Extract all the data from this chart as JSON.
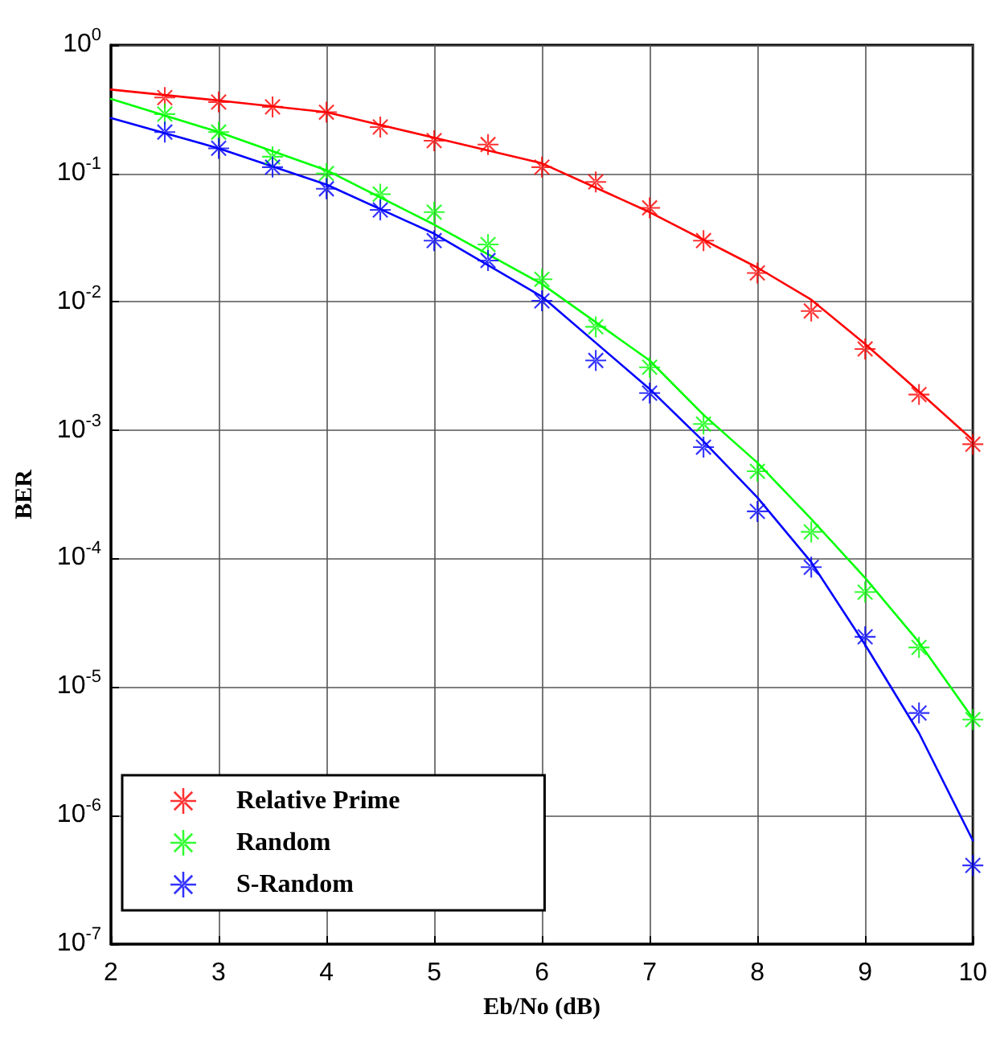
{
  "chart_data": {
    "type": "scatter",
    "xlabel": "Eb/No (dB)",
    "ylabel": "BER",
    "log": "y",
    "xlim": [
      2,
      10
    ],
    "xticks": [
      2,
      3,
      4,
      5,
      6,
      7,
      8,
      9,
      10
    ],
    "ylim": [
      1e-07,
      1
    ],
    "yticks": [
      {
        "value": 1e-07,
        "label": "10$^{-7}$"
      },
      {
        "value": 1e-06,
        "label": "10$^{-6}$"
      },
      {
        "value": 1e-05,
        "label": "10$^{-5}$"
      },
      {
        "value": 0.0001,
        "label": "10$^{-4}$"
      },
      {
        "value": 0.001,
        "label": "10$^{-3}$"
      },
      {
        "value": 0.01,
        "label": "10$^{-2}$"
      },
      {
        "value": 0.1,
        "label": "10$^{-1}$"
      },
      {
        "value": 1,
        "label": "10$^{0}$"
      }
    ],
    "grid": true,
    "legend": "bottom left",
    "marker": "star",
    "x": [
      2.5,
      3,
      3.5,
      4,
      4.5,
      5,
      5.5,
      6,
      6.5,
      7,
      7.5,
      8,
      8.5,
      9,
      9.5,
      10
    ],
    "series": [
      {
        "name": "Relative Prime",
        "color": "#ff0000",
        "values": [
          0.39,
          0.36,
          0.33,
          0.3,
          0.23,
          0.18,
          0.168,
          0.112,
          0.086,
          0.054,
          0.03,
          0.0168,
          0.0085,
          0.0043,
          0.0019,
          0.00078
        ]
      },
      {
        "name": "Random",
        "color": "#00ff00",
        "values": [
          0.29,
          0.21,
          0.135,
          0.1,
          0.069,
          0.05,
          0.028,
          0.015,
          0.0064,
          0.0031,
          0.00112,
          0.00048,
          0.000162,
          5.5e-05,
          2.04e-05,
          5.6e-06
        ]
      },
      {
        "name": "S-Random",
        "color": "#0000ff",
        "values": [
          0.21,
          0.157,
          0.112,
          0.076,
          0.052,
          0.03,
          0.021,
          0.0102,
          0.0035,
          0.00195,
          0.00074,
          0.000234,
          8.6e-05,
          2.47e-05,
          6.3e-06,
          4.1e-07
        ]
      },
      {
        "type": "line",
        "color": "#ff0000",
        "marker": "none",
        "line_style": "solid",
        "x": [
          2,
          3,
          4,
          5,
          6,
          7,
          8,
          8.5,
          9,
          9.5,
          10
        ],
        "values": [
          0.45,
          0.37,
          0.3,
          0.19,
          0.12,
          0.05,
          0.0185,
          0.0104,
          0.0047,
          0.002,
          0.00084
        ]
      },
      {
        "type": "line",
        "color": "#00ff00",
        "marker": "none",
        "line_style": "solid",
        "x": [
          2,
          3,
          4,
          5,
          6,
          7,
          7.5,
          8,
          8.5,
          9,
          9.5,
          10
        ],
        "values": [
          0.38,
          0.21,
          0.106,
          0.04,
          0.0138,
          0.0035,
          0.00132,
          0.00056,
          0.000204,
          7.1e-05,
          2.24e-05,
          5.7e-06
        ]
      },
      {
        "type": "line",
        "color": "#0000ff",
        "marker": "none",
        "line_style": "solid",
        "x": [
          2,
          3,
          4,
          5,
          6,
          7,
          7.5,
          8,
          8.5,
          9,
          9.5,
          10
        ],
        "values": [
          0.27,
          0.157,
          0.082,
          0.034,
          0.011,
          0.0021,
          0.00082,
          0.0003,
          9.4e-05,
          2.14e-05,
          4.4e-06,
          6.4e-07
        ]
      }
    ]
  }
}
